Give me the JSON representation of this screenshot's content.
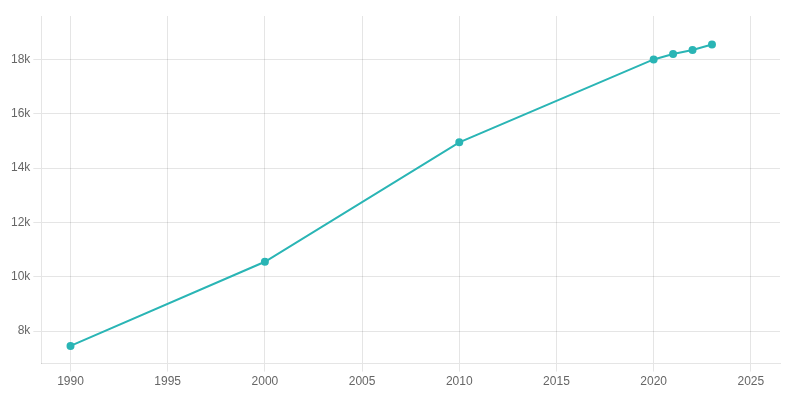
{
  "chart_data": {
    "type": "line",
    "x": [
      1990,
      2000,
      2010,
      2020,
      2021,
      2022,
      2023
    ],
    "values": [
      7450,
      10550,
      14950,
      18000,
      18200,
      18350,
      18550
    ],
    "color": "#2ab5b5",
    "marker": "circle",
    "xlim": [
      1988.5,
      2026.5
    ],
    "ylim": [
      6800,
      19600
    ],
    "xticks": [
      1990,
      1995,
      2000,
      2005,
      2010,
      2015,
      2020,
      2025
    ],
    "yticks": [
      {
        "value": 8000,
        "label": "8k"
      },
      {
        "value": 10000,
        "label": "10k"
      },
      {
        "value": 12000,
        "label": "12k"
      },
      {
        "value": 14000,
        "label": "14k"
      },
      {
        "value": 16000,
        "label": "16k"
      },
      {
        "value": 18000,
        "label": "18k"
      }
    ],
    "grid": true
  }
}
